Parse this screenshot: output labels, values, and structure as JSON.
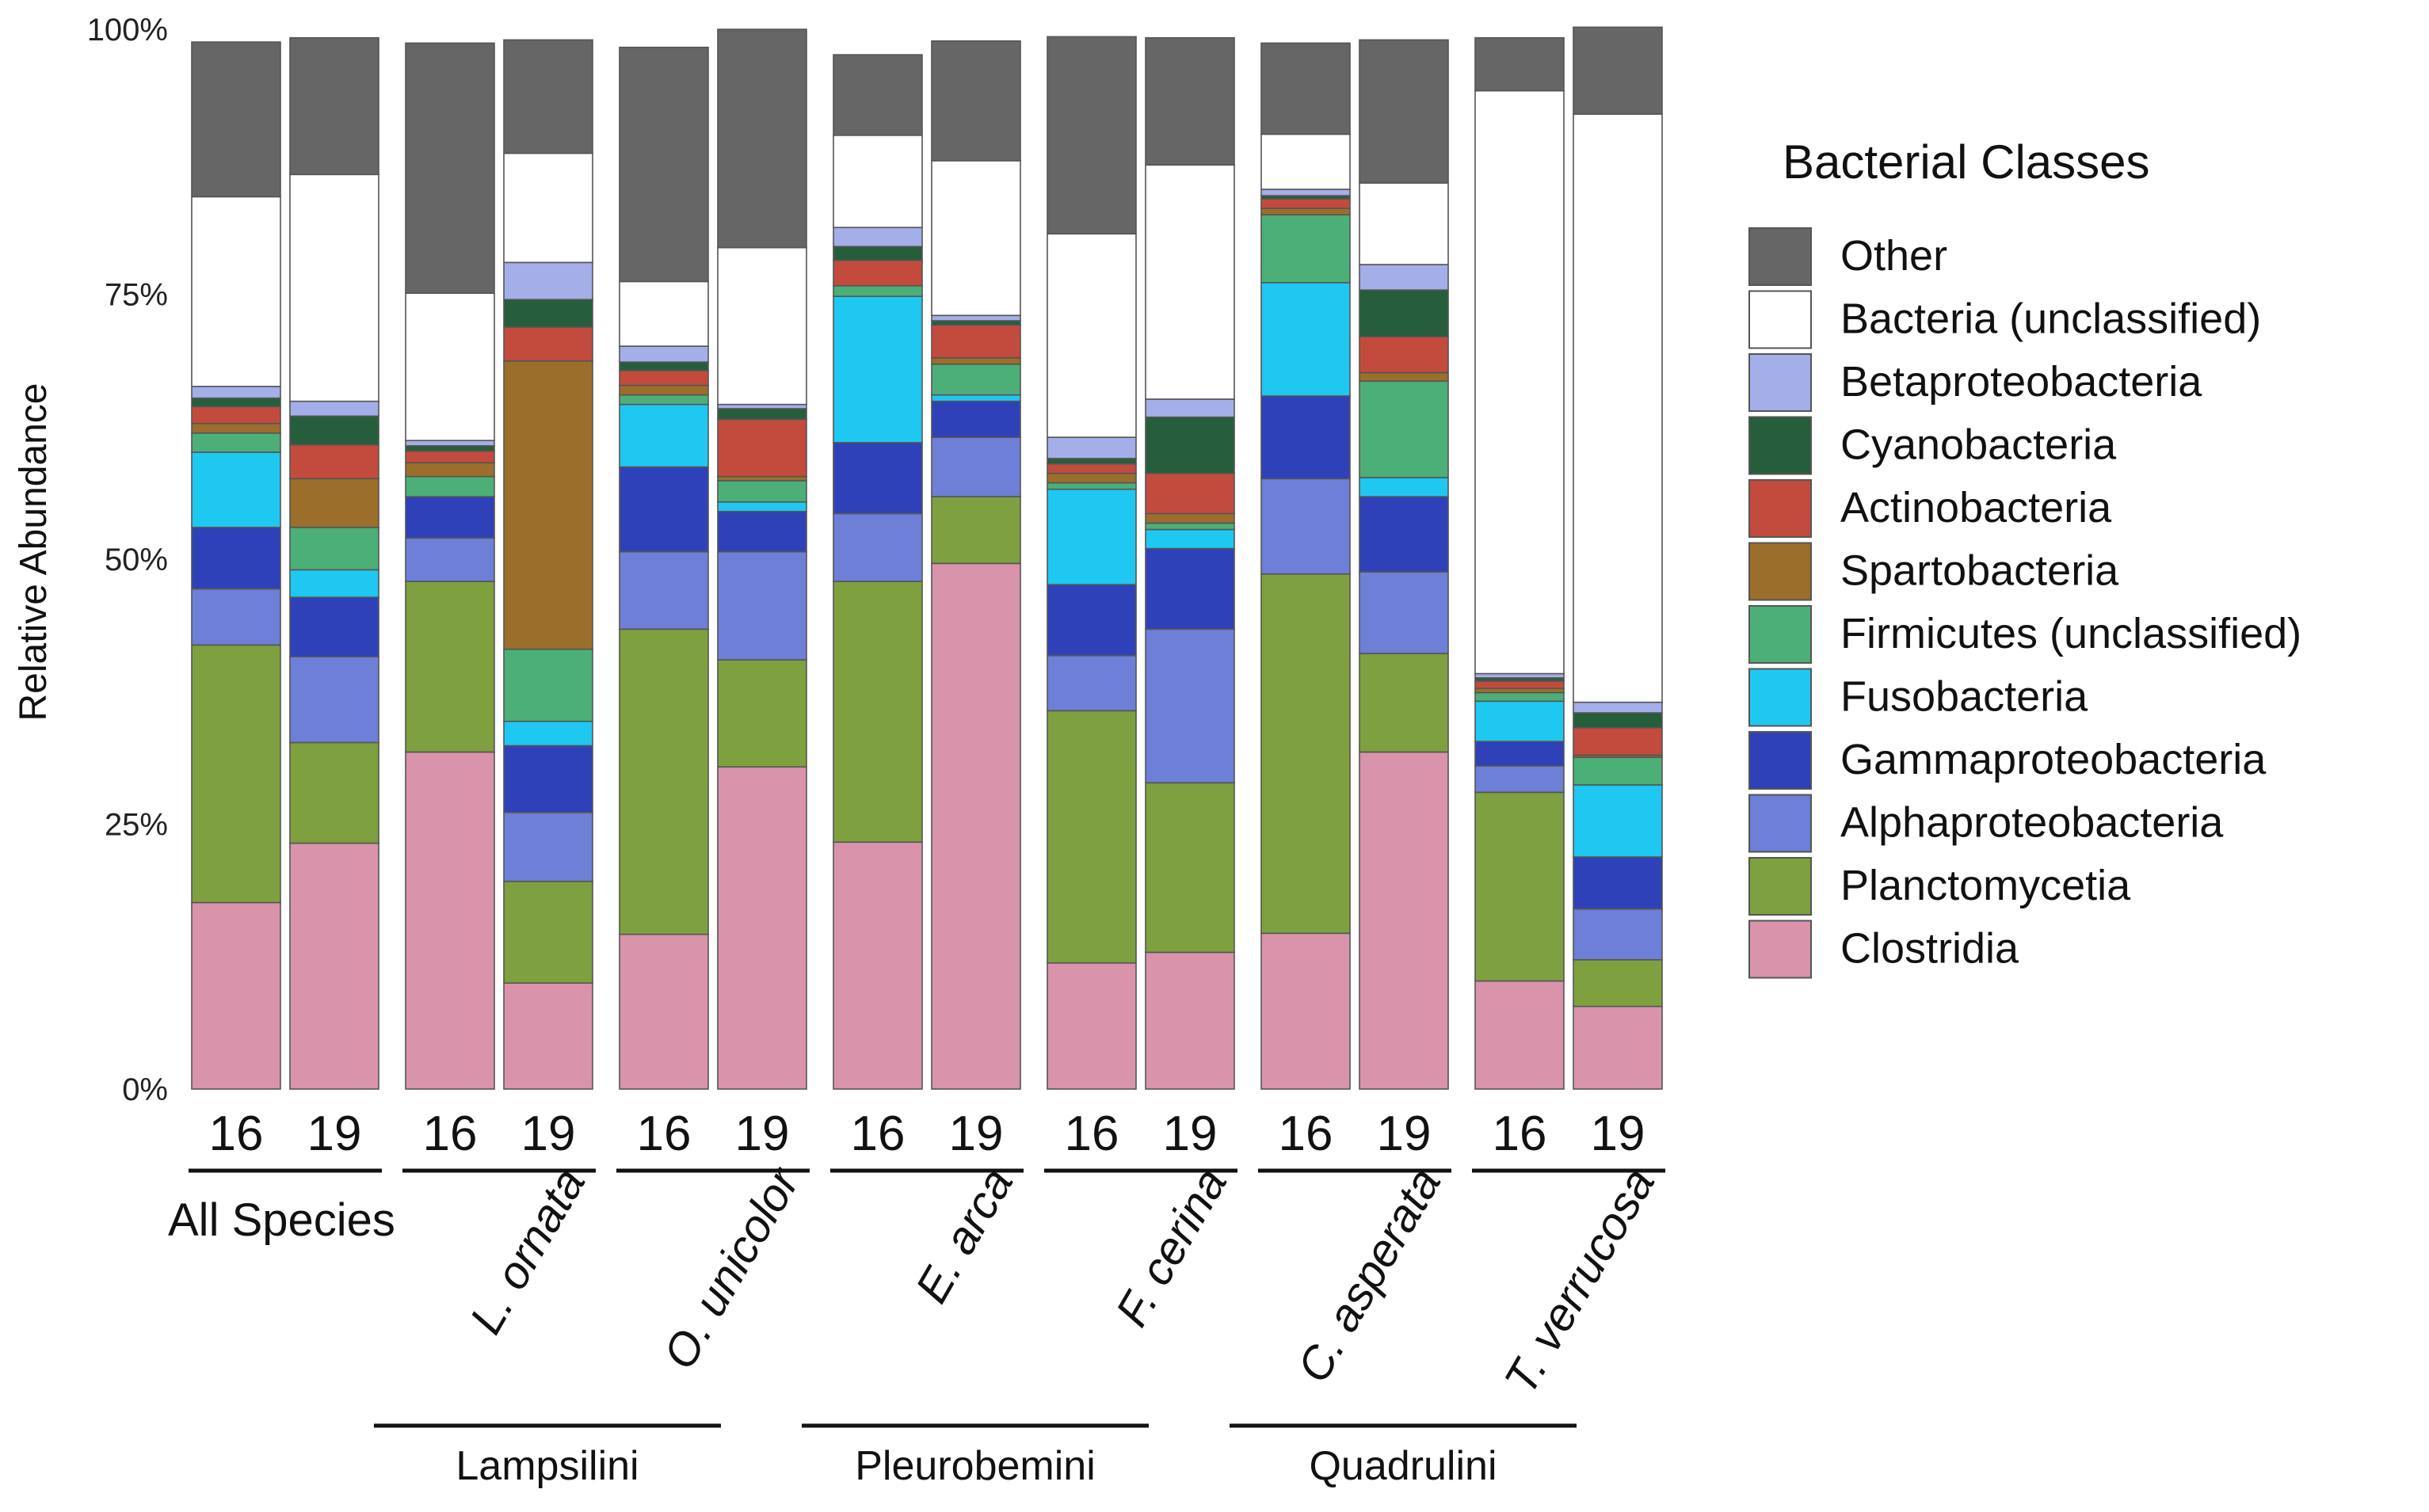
{
  "chart_data": {
    "type": "bar",
    "stacked": true,
    "percent": true,
    "ylabel": "Relative Abundance",
    "y_ticks": [
      "0%",
      "25%",
      "50%",
      "75%",
      "100%"
    ],
    "ylim": [
      0,
      100
    ],
    "legend_title": "Bacterial Classes",
    "legend_position": "right",
    "groups": [
      {
        "name": "All Species",
        "italic": false,
        "bars": [
          "16",
          "19"
        ]
      },
      {
        "name": "L. ornata",
        "italic": true,
        "bars": [
          "16",
          "19"
        ]
      },
      {
        "name": "O. unicolor",
        "italic": true,
        "bars": [
          "16",
          "19"
        ]
      },
      {
        "name": "E. arca",
        "italic": true,
        "bars": [
          "16",
          "19"
        ]
      },
      {
        "name": "F. cerina",
        "italic": true,
        "bars": [
          "16",
          "19"
        ]
      },
      {
        "name": "C. asperata",
        "italic": true,
        "bars": [
          "16",
          "19"
        ]
      },
      {
        "name": "T. verrucosa",
        "italic": true,
        "bars": [
          "16",
          "19"
        ]
      }
    ],
    "tribes": [
      "Lampsilini",
      "Pleurobemini",
      "Quadrulini"
    ],
    "series": [
      {
        "name": "Clostridia",
        "color": "#d993ab",
        "values": [
          17.6,
          23.2,
          31.8,
          10.0,
          14.6,
          30.4,
          23.3,
          49.6,
          11.9,
          12.9,
          14.7,
          31.8,
          10.2,
          7.8
        ]
      },
      {
        "name": "Planctomycetia",
        "color": "#7ea03f",
        "values": [
          24.3,
          9.5,
          16.1,
          9.6,
          28.8,
          10.1,
          24.6,
          6.3,
          23.8,
          16.0,
          33.9,
          9.3,
          17.8,
          4.4
        ]
      },
      {
        "name": "Alphaproteobacteria",
        "color": "#6d7fd6",
        "values": [
          5.3,
          8.1,
          4.1,
          6.5,
          7.3,
          10.2,
          6.4,
          5.6,
          5.2,
          14.5,
          9.0,
          7.7,
          2.5,
          4.8
        ]
      },
      {
        "name": "Gammaproteobacteria",
        "color": "#2f41b8",
        "values": [
          5.8,
          5.6,
          3.9,
          6.3,
          8.0,
          3.8,
          6.7,
          3.4,
          6.7,
          7.6,
          7.8,
          7.1,
          2.3,
          4.9
        ]
      },
      {
        "name": "Fusobacteria",
        "color": "#1fc8f0",
        "values": [
          7.1,
          2.6,
          0.0,
          2.3,
          5.9,
          0.9,
          13.8,
          0.6,
          9.0,
          1.8,
          10.7,
          1.8,
          3.8,
          6.8
        ]
      },
      {
        "name": "Firmicutes (unclassified)",
        "color": "#4caf78",
        "values": [
          1.8,
          4.0,
          1.9,
          6.8,
          0.9,
          2.0,
          1.0,
          2.9,
          0.6,
          0.6,
          6.4,
          9.1,
          0.8,
          2.6
        ]
      },
      {
        "name": "Spartobacteria",
        "color": "#9c6e2c",
        "values": [
          0.9,
          4.6,
          1.3,
          27.2,
          0.9,
          0.4,
          0.0,
          0.6,
          0.9,
          0.9,
          0.6,
          0.8,
          0.4,
          0.2
        ]
      },
      {
        "name": "Actinobacteria",
        "color": "#c24b3e",
        "values": [
          1.6,
          3.2,
          1.1,
          3.2,
          1.4,
          5.4,
          2.4,
          3.1,
          0.9,
          3.8,
          0.9,
          3.4,
          0.7,
          2.6
        ]
      },
      {
        "name": "Cyanobacteria",
        "color": "#265e3c",
        "values": [
          0.8,
          2.7,
          0.5,
          2.6,
          0.8,
          1.0,
          1.3,
          0.4,
          0.5,
          5.3,
          0.3,
          4.4,
          0.3,
          1.4
        ]
      },
      {
        "name": "Betaproteobacteria",
        "color": "#a4aee8",
        "values": [
          1.1,
          1.4,
          0.5,
          3.5,
          1.5,
          0.4,
          1.8,
          0.5,
          2.0,
          1.7,
          0.6,
          2.4,
          0.4,
          1.0
        ]
      },
      {
        "name": "Bacteria (unclassified)",
        "color": "#ffffff",
        "values": [
          17.9,
          21.4,
          13.9,
          10.3,
          6.1,
          14.8,
          8.7,
          14.6,
          19.2,
          22.1,
          5.2,
          7.7,
          55.0,
          55.5
        ]
      },
      {
        "name": "Other",
        "color": "#666666",
        "values": [
          14.6,
          12.9,
          23.6,
          10.7,
          22.1,
          20.6,
          7.6,
          11.3,
          18.6,
          12.0,
          8.6,
          13.5,
          5.0,
          8.2
        ]
      }
    ]
  }
}
